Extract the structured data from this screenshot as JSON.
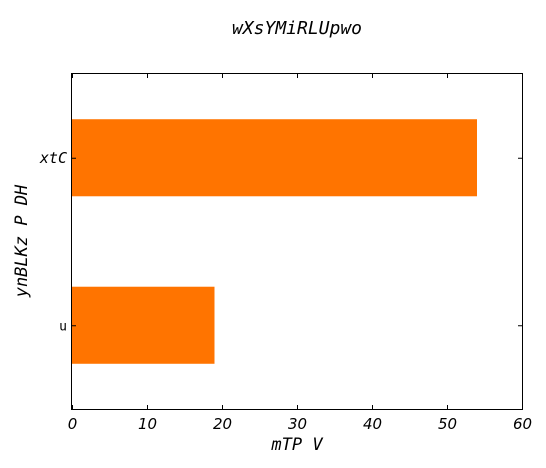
{
  "chart_data": {
    "type": "bar",
    "orientation": "horizontal",
    "title": "wXsYMiRLUpwo",
    "xlabel": "mTP V",
    "ylabel": "ynBLKz P  DH",
    "categories": [
      "xtC",
      "u"
    ],
    "values": [
      54,
      19
    ],
    "xlim": [
      0,
      60
    ],
    "xticks": [
      0,
      10,
      20,
      30,
      40,
      50,
      60
    ],
    "grid": false,
    "bar_color": "#ff7400"
  }
}
